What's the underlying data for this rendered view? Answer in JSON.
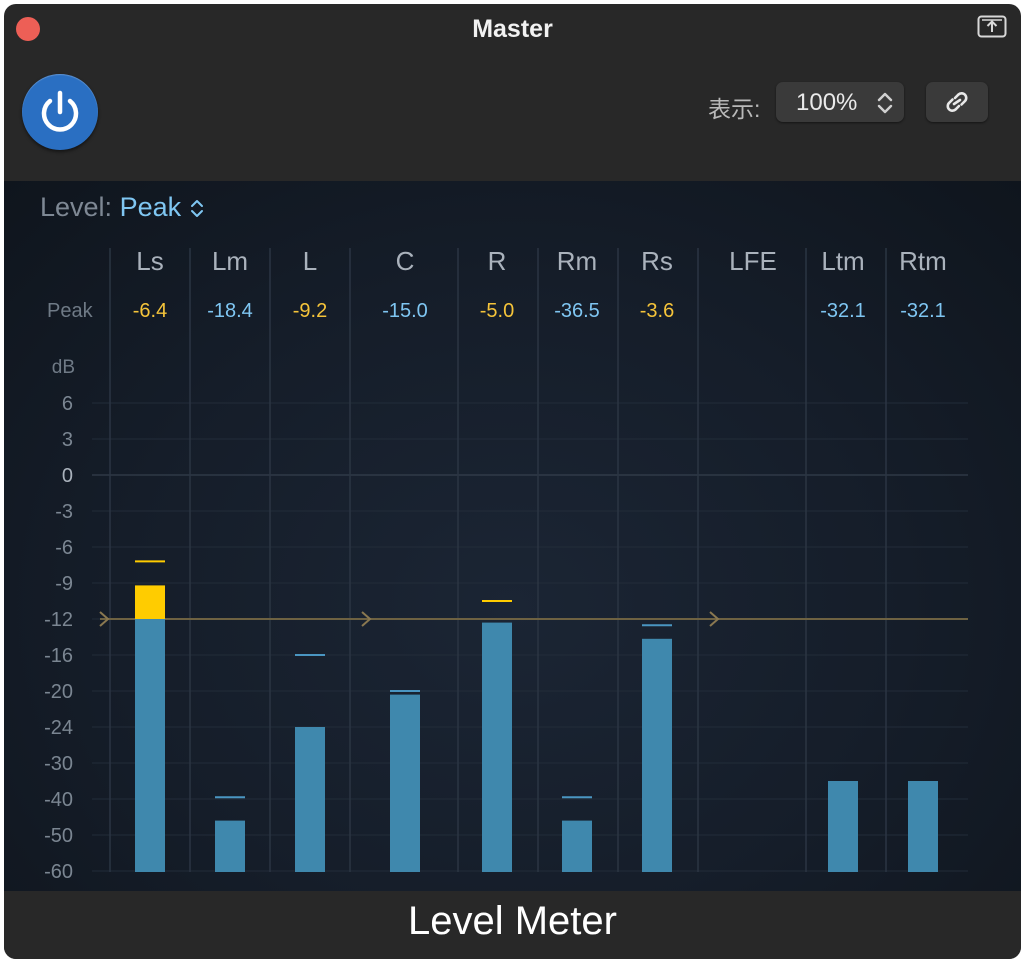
{
  "window": {
    "title": "Master",
    "footer_title": "Level Meter"
  },
  "toolbar": {
    "view_label": "表示:",
    "zoom_value": "100%"
  },
  "meter": {
    "mode_label": "Level:",
    "mode_value": "Peak",
    "peak_row_label": "Peak",
    "db_label": "dB",
    "scale": [
      "6",
      "3",
      "0",
      "-3",
      "-6",
      "-9",
      "-12",
      "-16",
      "-20",
      "-24",
      "-30",
      "-40",
      "-50",
      "-60"
    ],
    "colors": {
      "bar": "#3f88ad",
      "over": "#ffcc00",
      "peak_hot": "#f5c43a",
      "peak_cool": "#7fc6f2",
      "reference": "#6e6242"
    },
    "channels": [
      {
        "name": "Ls",
        "peak": "-6.4",
        "peak_color": "hot",
        "level_db": -9.2,
        "hold_db": -7.2
      },
      {
        "name": "Lm",
        "peak": "-18.4",
        "peak_color": "cool",
        "level_db": -46,
        "hold_db": -39.5
      },
      {
        "name": "L",
        "peak": "-9.2",
        "peak_color": "hot",
        "level_db": -24,
        "hold_db": -16
      },
      {
        "name": "C",
        "peak": "-15.0",
        "peak_color": "cool",
        "level_db": -20.4,
        "hold_db": -20
      },
      {
        "name": "R",
        "peak": "-5.0",
        "peak_color": "hot",
        "level_db": -12.4,
        "hold_db": -10.5
      },
      {
        "name": "Rm",
        "peak": "-36.5",
        "peak_color": "cool",
        "level_db": -46,
        "hold_db": -39.5
      },
      {
        "name": "Rs",
        "peak": "-3.6",
        "peak_color": "hot",
        "level_db": -14.2,
        "hold_db": -12.7
      },
      {
        "name": "LFE",
        "peak": "",
        "peak_color": "cool",
        "level_db": null,
        "hold_db": null
      },
      {
        "name": "Ltm",
        "peak": "-32.1",
        "peak_color": "cool",
        "level_db": -35,
        "hold_db": null
      },
      {
        "name": "Rtm",
        "peak": "-32.1",
        "peak_color": "cool",
        "level_db": -35,
        "hold_db": null
      }
    ],
    "reference_level_db": -12
  }
}
